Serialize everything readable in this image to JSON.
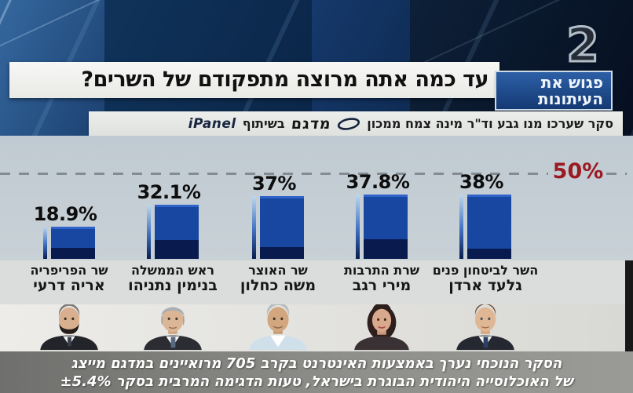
{
  "channel": {
    "logo_text": "2"
  },
  "program_badge": {
    "line1": "פגוש את",
    "line2": "העיתונות"
  },
  "title": "עד כמה אתה מרוצה מתפקודם של השרים?",
  "credit": {
    "text_before": "סקר שערכו מנו גבע וד\"ר מינה צמח ממכון",
    "midgam_logo": "מדגם",
    "text_middle": "בשיתוף",
    "ipanel_logo": "iPanel"
  },
  "chart_data": {
    "type": "bar",
    "title": "עד כמה אתה מרוצה מתפקודם של השרים?",
    "ylim": [
      0,
      50
    ],
    "grid": false,
    "reference_line": {
      "value": 50,
      "label": "50%",
      "style": "dashed",
      "color": "#9c1a22"
    },
    "bar_color": "#1747a0",
    "bar_shade_color": "#081a4e",
    "categories": [
      "אריה דרעי",
      "בנימין נתניהו",
      "משה כחלון",
      "מירי רגב",
      "גלעד ארדן"
    ],
    "values": [
      18.9,
      32.1,
      37,
      37.8,
      38
    ],
    "bars": [
      {
        "value": 18.9,
        "label": "18.9%",
        "role": "שר הפריפריה",
        "name": "אריה דרעי",
        "photo": "aryeh-deri"
      },
      {
        "value": 32.1,
        "label": "32.1%",
        "role": "ראש הממשלה",
        "name": "בנימין נתניהו",
        "photo": "benjamin-netanyahu"
      },
      {
        "value": 37,
        "label": "37%",
        "role": "שר האוצר",
        "name": "משה כחלון",
        "photo": "moshe-kahlon"
      },
      {
        "value": 37.8,
        "label": "37.8%",
        "role": "שרת התרבות",
        "name": "מירי רגב",
        "photo": "miri-regev"
      },
      {
        "value": 38,
        "label": "38%",
        "role": "השר לביטחון פנים",
        "name": "גלעד ארדן",
        "photo": "gilad-erdan"
      }
    ]
  },
  "footnote": {
    "line1": "הסקר הנוכחי נערך באמצעות האינטרנט בקרב 705 מרואיינים במדגם מייצג",
    "line2_text": "של האוכלוסייה היהודית הבוגרת בישראל, טעות הדגימה המרבית בסקר",
    "line2_stat": "±5.4%"
  }
}
